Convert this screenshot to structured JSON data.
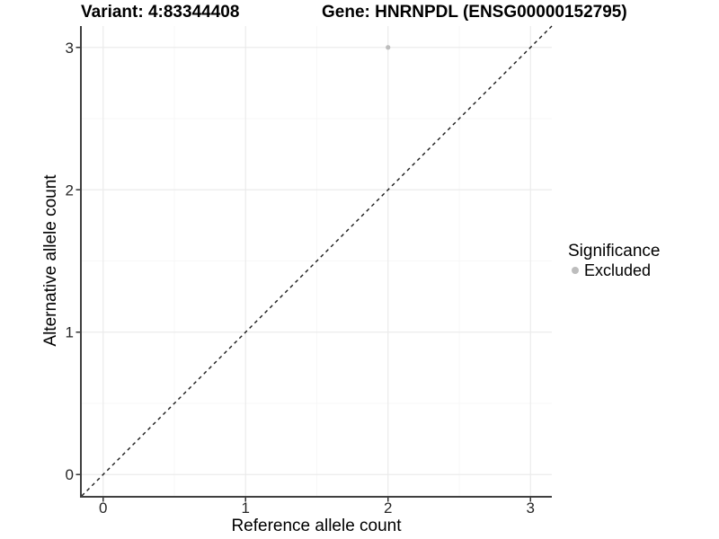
{
  "titles": {
    "variant": "Variant: 4:83344408",
    "gene": "Gene: HNRNPDL (ENSG00000152795)"
  },
  "chart_data": {
    "type": "scatter",
    "title_left": "Variant: 4:83344408",
    "title_right": "Gene: HNRNPDL (ENSG00000152795)",
    "xlabel": "Reference allele count",
    "ylabel": "Alternative allele count",
    "xlim": [
      -0.15,
      3.15
    ],
    "ylim": [
      -0.15,
      3.15
    ],
    "xticks": [
      0,
      1,
      2,
      3
    ],
    "yticks": [
      0,
      1,
      2,
      3
    ],
    "xticks_minor": [
      0.5,
      1.5,
      2.5
    ],
    "yticks_minor": [
      0.5,
      1.5,
      2.5
    ],
    "grid": "on",
    "series": [
      {
        "name": "Excluded",
        "marker": "circle",
        "color": "#bdbdbd",
        "points": [
          {
            "x": 2,
            "y": 3
          }
        ]
      }
    ],
    "reference_line": {
      "kind": "identity y=x",
      "style": "dashed",
      "color": "#1a1a1a",
      "x": [
        -0.15,
        3.15
      ],
      "y": [
        -0.15,
        3.15
      ]
    },
    "legend": {
      "title": "Significance",
      "position": "right-middle",
      "entries": [
        {
          "label": "Excluded",
          "color": "#bdbdbd",
          "marker": "circle"
        }
      ]
    }
  },
  "colors": {
    "background": "#ffffff",
    "grid_major": "#ebebeb",
    "grid_minor": "#f7f7f7",
    "axis_line": "#3f3f3f",
    "tick_mark": "#333333",
    "tick_label": "#262626",
    "point": "#bdbdbd",
    "ref_line": "#1a1a1a"
  }
}
